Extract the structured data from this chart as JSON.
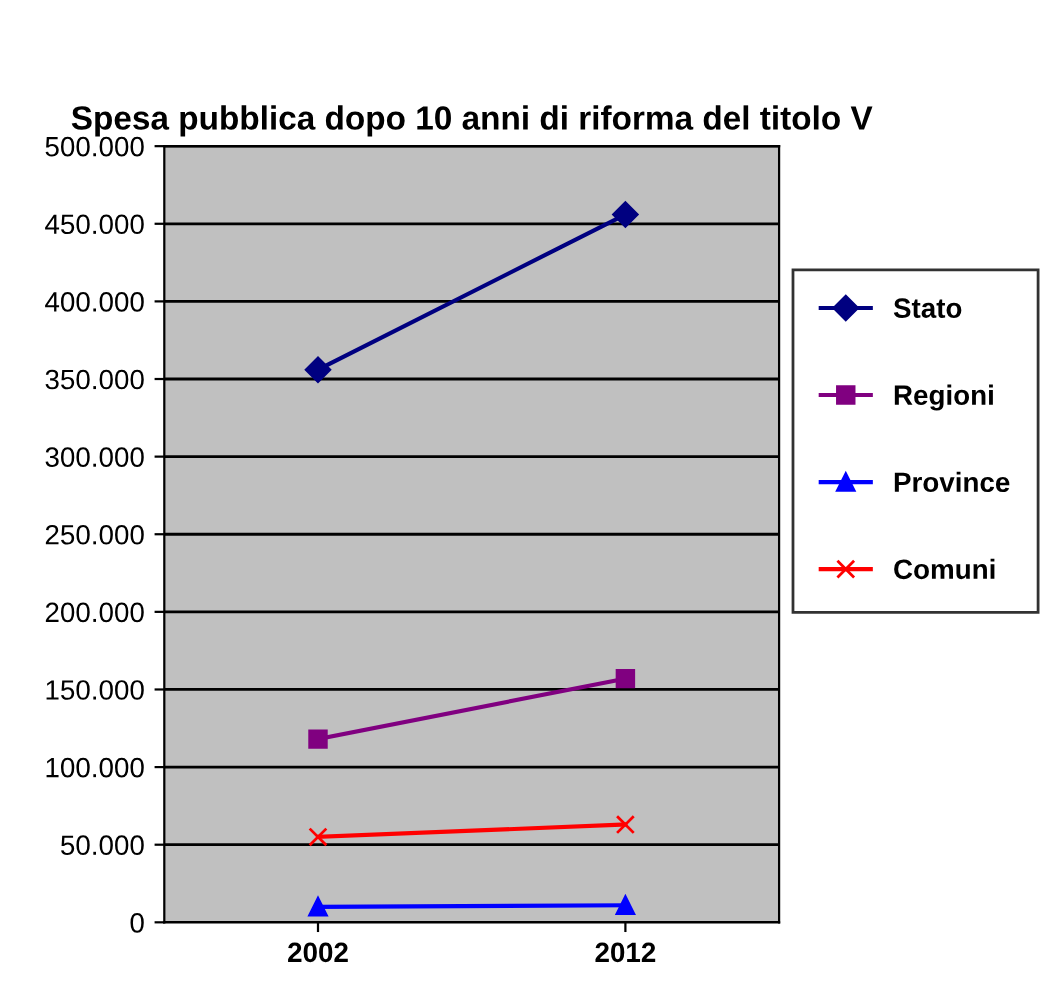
{
  "chart_data": {
    "type": "line",
    "title": "Spesa pubblica dopo 10 anni di riforma del titolo V",
    "categories": [
      "2002",
      "2012"
    ],
    "series": [
      {
        "name": "Stato",
        "color": "#000080",
        "values": [
          356000,
          456000
        ],
        "marker": "diamond"
      },
      {
        "name": "Regioni",
        "color": "#800080",
        "values": [
          118000,
          157000
        ],
        "marker": "square"
      },
      {
        "name": "Province",
        "color": "#0000ff",
        "values": [
          10000,
          11000
        ],
        "marker": "triangle"
      },
      {
        "name": "Comuni",
        "color": "#ff0000",
        "values": [
          55000,
          63000
        ],
        "marker": "cross"
      }
    ],
    "ylim": [
      0,
      500000
    ],
    "yticks": [
      {
        "value": 0,
        "label": "0"
      },
      {
        "value": 50000,
        "label": "50.000"
      },
      {
        "value": 100000,
        "label": "100.000"
      },
      {
        "value": 150000,
        "label": "150.000"
      },
      {
        "value": 200000,
        "label": "200.000"
      },
      {
        "value": 250000,
        "label": "250.000"
      },
      {
        "value": 300000,
        "label": "300.000"
      },
      {
        "value": 350000,
        "label": "350.000"
      },
      {
        "value": 400000,
        "label": "400.000"
      },
      {
        "value": 450000,
        "label": "450.000"
      },
      {
        "value": 500000,
        "label": "500.000"
      }
    ],
    "grid": "y",
    "legend": "right"
  }
}
